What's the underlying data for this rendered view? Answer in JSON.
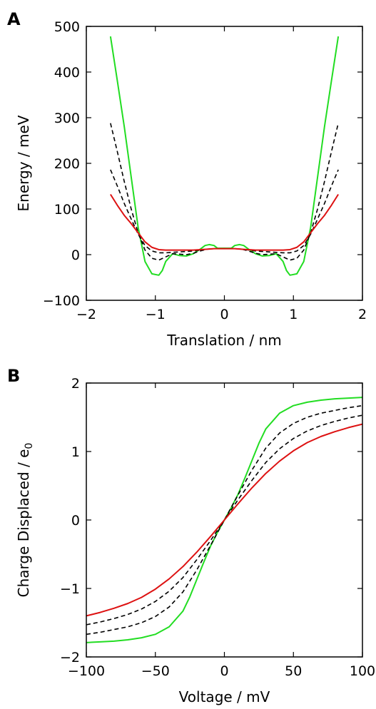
{
  "chart_data": [
    {
      "panel_label": "A",
      "type": "line",
      "xlabel": "Translation / nm",
      "ylabel": "Energy / meV",
      "xlim": [
        -2,
        2
      ],
      "ylim": [
        -100,
        500
      ],
      "xticks": [
        "−2",
        "−1",
        "0",
        "1",
        "2"
      ],
      "yticks": [
        "−100",
        "0",
        "100",
        "200",
        "300",
        "400",
        "500"
      ],
      "grid": false,
      "series": [
        {
          "color": "#22dd22",
          "dash": "solid",
          "x": [
            -1.65,
            -1.55,
            -1.45,
            -1.35,
            -1.25,
            -1.15,
            -1.05,
            -0.95,
            -0.9,
            -0.85,
            -0.75,
            -0.65,
            -0.55,
            -0.45,
            -0.35,
            -0.28,
            -0.22,
            -0.15,
            -0.1,
            0.0,
            0.1,
            0.15,
            0.22,
            0.28,
            0.35,
            0.45,
            0.55,
            0.65,
            0.75,
            0.85,
            0.9,
            0.95,
            1.05,
            1.15,
            1.25,
            1.35,
            1.45,
            1.55,
            1.65
          ],
          "y": [
            478,
            380,
            280,
            170,
            60,
            -15,
            -42,
            -45,
            -35,
            -15,
            2,
            -2,
            -3,
            2,
            12,
            20,
            22,
            20,
            14,
            14,
            14,
            20,
            22,
            20,
            12,
            2,
            -3,
            -2,
            2,
            -15,
            -35,
            -45,
            -42,
            -15,
            60,
            170,
            280,
            380,
            478
          ]
        },
        {
          "color": "#000000",
          "dash": "dashed",
          "x": [
            -1.65,
            -1.55,
            -1.45,
            -1.35,
            -1.25,
            -1.15,
            -1.05,
            -0.95,
            -0.85,
            -0.75,
            -0.65,
            -0.55,
            -0.45,
            -0.35,
            -0.25,
            -0.15,
            0.0,
            0.15,
            0.25,
            0.35,
            0.45,
            0.55,
            0.65,
            0.75,
            0.85,
            0.95,
            1.05,
            1.15,
            1.25,
            1.35,
            1.45,
            1.55,
            1.65
          ],
          "y": [
            288,
            225,
            160,
            100,
            48,
            10,
            -8,
            -12,
            -5,
            2,
            1,
            0,
            3,
            8,
            12,
            13,
            13,
            13,
            12,
            8,
            3,
            0,
            1,
            2,
            -5,
            -12,
            -8,
            10,
            48,
            100,
            160,
            225,
            288
          ]
        },
        {
          "color": "#000000",
          "dash": "dashed",
          "x": [
            -1.65,
            -1.55,
            -1.45,
            -1.35,
            -1.25,
            -1.15,
            -1.05,
            -0.95,
            -0.85,
            -0.75,
            -0.65,
            -0.55,
            -0.45,
            -0.35,
            -0.25,
            -0.15,
            0.0,
            0.15,
            0.25,
            0.35,
            0.45,
            0.55,
            0.65,
            0.75,
            0.85,
            0.95,
            1.05,
            1.15,
            1.25,
            1.35,
            1.45,
            1.55,
            1.65
          ],
          "y": [
            186,
            150,
            112,
            78,
            45,
            20,
            8,
            4,
            4,
            5,
            6,
            7,
            8,
            10,
            12,
            13,
            13,
            13,
            12,
            10,
            8,
            7,
            6,
            5,
            4,
            4,
            8,
            20,
            45,
            78,
            112,
            150,
            186
          ]
        },
        {
          "color": "#dd1111",
          "dash": "solid",
          "x": [
            -1.65,
            -1.55,
            -1.45,
            -1.35,
            -1.25,
            -1.15,
            -1.05,
            -0.95,
            -0.85,
            -0.75,
            -0.65,
            -0.55,
            -0.45,
            -0.35,
            -0.25,
            -0.15,
            0.0,
            0.15,
            0.25,
            0.35,
            0.45,
            0.55,
            0.65,
            0.75,
            0.85,
            0.95,
            1.05,
            1.15,
            1.25,
            1.35,
            1.45,
            1.55,
            1.65
          ],
          "y": [
            132,
            108,
            86,
            68,
            48,
            28,
            16,
            11,
            10,
            10,
            10,
            10,
            10,
            11,
            12,
            13,
            13,
            13,
            12,
            11,
            10,
            10,
            10,
            10,
            10,
            11,
            16,
            28,
            48,
            68,
            86,
            108,
            132
          ]
        }
      ]
    },
    {
      "panel_label": "B",
      "type": "line",
      "xlabel": "Voltage / mV",
      "ylabel": "Charge Displaced / e",
      "ylabel_subscript": "0",
      "xlim": [
        -100,
        100
      ],
      "ylim": [
        -2,
        2
      ],
      "xticks": [
        "−100",
        "−50",
        "0",
        "50",
        "100"
      ],
      "yticks": [
        "−2",
        "−1",
        "0",
        "1",
        "2"
      ],
      "grid": false,
      "series": [
        {
          "color": "#22dd22",
          "dash": "solid",
          "x": [
            -100,
            -90,
            -80,
            -70,
            -60,
            -50,
            -40,
            -30,
            -25,
            -20,
            -15,
            -10,
            -5,
            0,
            5,
            10,
            15,
            20,
            25,
            30,
            40,
            50,
            60,
            70,
            80,
            90,
            100
          ],
          "y": [
            -1.79,
            -1.78,
            -1.77,
            -1.75,
            -1.72,
            -1.67,
            -1.56,
            -1.33,
            -1.12,
            -0.87,
            -0.62,
            -0.38,
            -0.18,
            0.0,
            0.18,
            0.38,
            0.62,
            0.87,
            1.12,
            1.33,
            1.56,
            1.67,
            1.72,
            1.75,
            1.77,
            1.78,
            1.79
          ]
        },
        {
          "color": "#000000",
          "dash": "dashed",
          "x": [
            -100,
            -90,
            -80,
            -70,
            -60,
            -50,
            -40,
            -30,
            -20,
            -10,
            0,
            10,
            20,
            30,
            40,
            50,
            60,
            70,
            80,
            90,
            100
          ],
          "y": [
            -1.67,
            -1.64,
            -1.6,
            -1.56,
            -1.5,
            -1.41,
            -1.27,
            -1.05,
            -0.73,
            -0.37,
            0.0,
            0.37,
            0.73,
            1.05,
            1.27,
            1.41,
            1.5,
            1.56,
            1.6,
            1.64,
            1.67
          ]
        },
        {
          "color": "#000000",
          "dash": "dashed",
          "x": [
            -100,
            -90,
            -80,
            -70,
            -60,
            -50,
            -40,
            -30,
            -20,
            -10,
            0,
            10,
            20,
            30,
            40,
            50,
            60,
            70,
            80,
            90,
            100
          ],
          "y": [
            -1.53,
            -1.49,
            -1.44,
            -1.38,
            -1.3,
            -1.19,
            -1.04,
            -0.84,
            -0.58,
            -0.3,
            0.0,
            0.3,
            0.58,
            0.84,
            1.04,
            1.19,
            1.3,
            1.38,
            1.44,
            1.49,
            1.53
          ]
        },
        {
          "color": "#dd1111",
          "dash": "solid",
          "x": [
            -100,
            -90,
            -80,
            -70,
            -60,
            -50,
            -40,
            -30,
            -20,
            -10,
            0,
            10,
            20,
            30,
            40,
            50,
            60,
            70,
            80,
            90,
            100
          ],
          "y": [
            -1.4,
            -1.35,
            -1.29,
            -1.22,
            -1.13,
            -1.01,
            -0.86,
            -0.68,
            -0.47,
            -0.24,
            0.0,
            0.24,
            0.47,
            0.68,
            0.86,
            1.01,
            1.13,
            1.22,
            1.29,
            1.35,
            1.4
          ]
        }
      ]
    }
  ]
}
